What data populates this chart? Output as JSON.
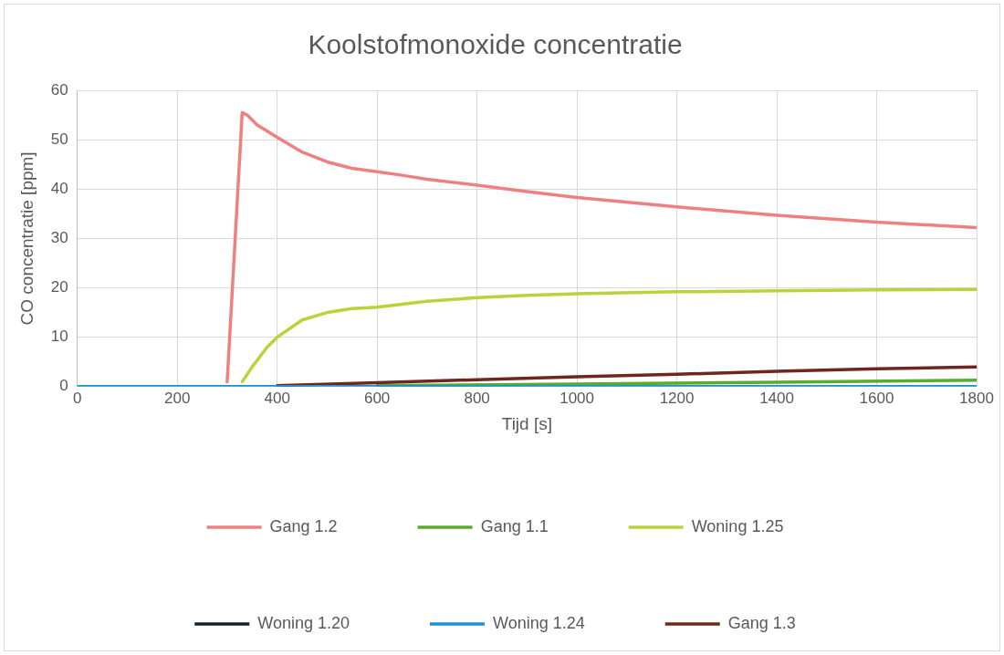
{
  "chart_data": {
    "type": "line",
    "title": "Koolstofmonoxide concentratie",
    "xlabel": "Tijd [s]",
    "ylabel": "CO concentratie [ppm]",
    "xlim": [
      0,
      1800
    ],
    "xticks": [
      0,
      200,
      400,
      600,
      800,
      1000,
      1200,
      1400,
      1600,
      1800
    ],
    "ylim": [
      0,
      60
    ],
    "yticks": [
      0,
      10,
      20,
      30,
      40,
      50,
      60
    ],
    "grid": true,
    "legend": "bottom",
    "marker": "none",
    "line_style": "solid",
    "series": [
      {
        "name": "Gang 1.2",
        "color": "#ef8080",
        "x": [
          300,
          330,
          340,
          360,
          400,
          450,
          500,
          550,
          600,
          650,
          700,
          800,
          900,
          1000,
          1200,
          1400,
          1600,
          1800
        ],
        "values": [
          1,
          55.5,
          55,
          53,
          50.5,
          47.5,
          45.5,
          44.2,
          43.5,
          42.8,
          42,
          40.8,
          39.5,
          38.3,
          36.4,
          34.7,
          33.3,
          32.2
        ]
      },
      {
        "name": "Gang 1.1",
        "color": "#5aad2a",
        "x": [
          600,
          1000,
          1400,
          1800
        ],
        "values": [
          0.2,
          0.5,
          0.9,
          1.3
        ]
      },
      {
        "name": "Woning 1.25",
        "color": "#bad33a",
        "x": [
          330,
          350,
          380,
          400,
          450,
          500,
          550,
          600,
          650,
          700,
          800,
          900,
          1000,
          1200,
          1400,
          1600,
          1800
        ],
        "values": [
          1,
          4,
          8,
          10,
          13.5,
          15,
          15.8,
          16.1,
          16.7,
          17.3,
          18,
          18.5,
          18.8,
          19.2,
          19.4,
          19.6,
          19.7
        ]
      },
      {
        "name": "Woning 1.20",
        "color": "#0d2235",
        "values": [
          null
        ]
      },
      {
        "name": "Woning 1.24",
        "color": "#1a93d0",
        "x": [
          0,
          1800
        ],
        "values": [
          0,
          0
        ]
      },
      {
        "name": "Gang 1.3",
        "color": "#70261f",
        "x": [
          400,
          600,
          800,
          1000,
          1200,
          1400,
          1600,
          1800
        ],
        "values": [
          0.2,
          0.8,
          1.4,
          2,
          2.5,
          3.1,
          3.6,
          4.0
        ]
      }
    ]
  }
}
